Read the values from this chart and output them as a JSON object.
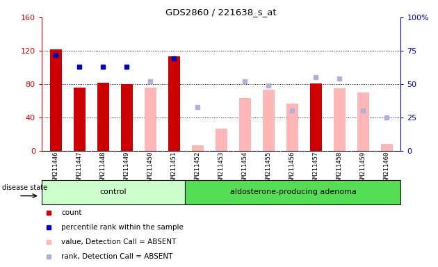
{
  "title": "GDS2860 / 221638_s_at",
  "categories": [
    "GSM211446",
    "GSM211447",
    "GSM211448",
    "GSM211449",
    "GSM211450",
    "GSM211451",
    "GSM211452",
    "GSM211453",
    "GSM211454",
    "GSM211455",
    "GSM211456",
    "GSM211457",
    "GSM211458",
    "GSM211459",
    "GSM211460"
  ],
  "control_count": 6,
  "adenoma_count": 9,
  "count_values": [
    122,
    76,
    82,
    80,
    null,
    113,
    null,
    null,
    null,
    null,
    null,
    81,
    null,
    null,
    null
  ],
  "percentile_values": [
    72,
    63,
    63,
    63,
    null,
    69,
    null,
    null,
    null,
    null,
    null,
    null,
    null,
    null,
    null
  ],
  "value_absent": [
    null,
    null,
    null,
    null,
    76,
    null,
    7,
    27,
    63,
    73,
    57,
    80,
    75,
    70,
    8
  ],
  "rank_absent": [
    null,
    null,
    null,
    null,
    52,
    null,
    33,
    null,
    52,
    49,
    30,
    55,
    54,
    30,
    25
  ],
  "left_ylim": [
    0,
    160
  ],
  "right_ylim": [
    0,
    100
  ],
  "left_yticks": [
    0,
    40,
    80,
    120,
    160
  ],
  "right_yticks": [
    0,
    25,
    50,
    75,
    100
  ],
  "right_yticklabels": [
    "0",
    "25",
    "50",
    "75",
    "100%"
  ],
  "color_count": "#cc0000",
  "color_percentile": "#0000bb",
  "color_value_absent": "#ffb6b6",
  "color_rank_absent": "#b0b0dd",
  "control_bg": "#ccffcc",
  "adenoma_bg": "#55dd55",
  "xticklabel_bg": "#c8c8c8",
  "disease_state_label": "disease state",
  "control_label": "control",
  "adenoma_label": "aldosterone-producing adenoma",
  "legend_items": [
    "count",
    "percentile rank within the sample",
    "value, Detection Call = ABSENT",
    "rank, Detection Call = ABSENT"
  ]
}
